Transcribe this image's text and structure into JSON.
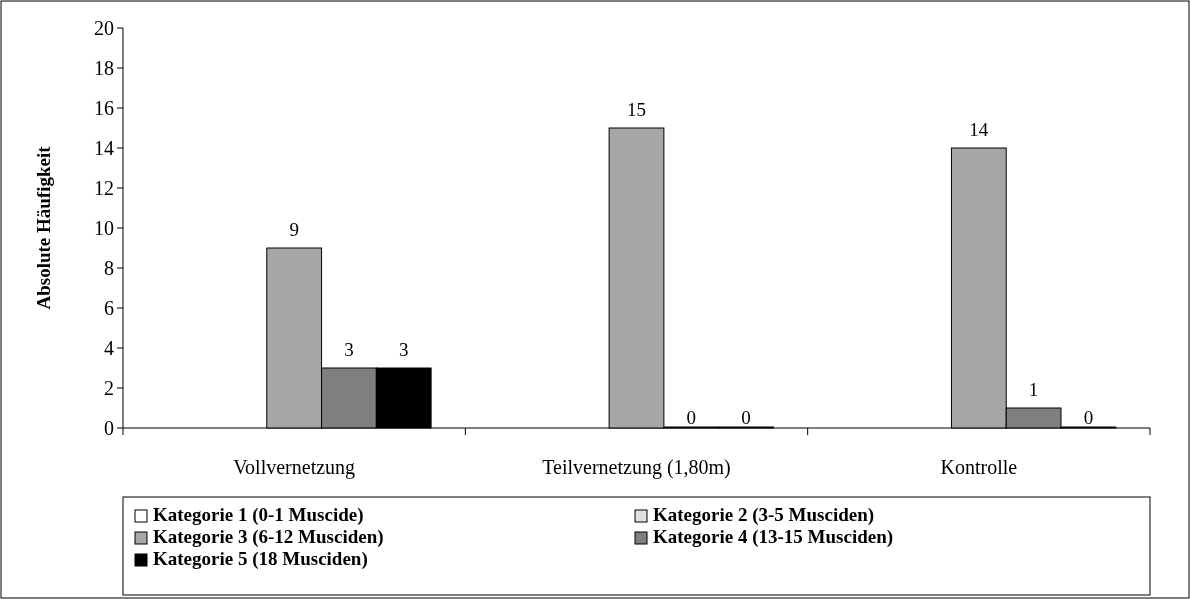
{
  "chart_data": {
    "type": "bar",
    "ylabel": "Absolute Häufigkeit",
    "categories": [
      "Vollvernetzung",
      "Teilvernetzung (1,80m)",
      "Kontrolle"
    ],
    "series": [
      {
        "name": "Kategorie 1 (0-1 Muscide)",
        "color": "#ffffff",
        "values": [
          null,
          null,
          null
        ]
      },
      {
        "name": "Kategorie 2 (3-5 Musciden)",
        "color": "#e0e0e0",
        "values": [
          null,
          null,
          null
        ]
      },
      {
        "name": "Kategorie 3 (6-12 Musciden)",
        "color": "#a6a6a6",
        "values": [
          9,
          15,
          14
        ]
      },
      {
        "name": "Kategorie 4 (13-15 Musciden)",
        "color": "#7f7f7f",
        "values": [
          3,
          0,
          1
        ]
      },
      {
        "name": "Kategorie 5 (18 Musciden)",
        "color": "#000000",
        "values": [
          3,
          0,
          0
        ]
      }
    ],
    "ylim": [
      0,
      20
    ],
    "yticks": [
      0,
      2,
      4,
      6,
      8,
      10,
      12,
      14,
      16,
      18,
      20
    ],
    "data_labels": true,
    "legend": "bottom",
    "grid": false
  }
}
